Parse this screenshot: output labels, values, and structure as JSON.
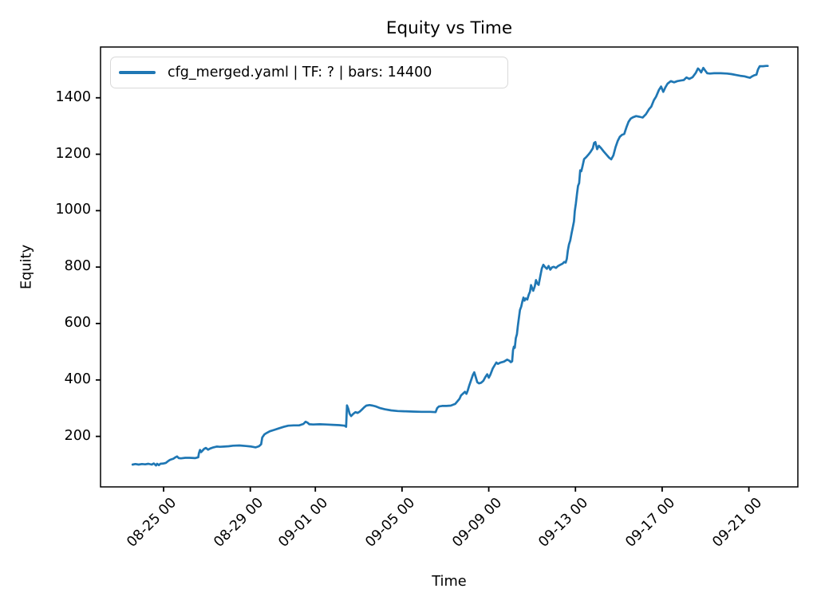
{
  "chart_data": {
    "type": "line",
    "title": "Equity vs Time",
    "xlabel": "Time",
    "ylabel": "Equity",
    "grid": false,
    "legend": {
      "position": "upper left",
      "entries": [
        "cfg_merged.yaml | TF: ? | bars: 14400"
      ]
    },
    "line_color": "#1f77b4",
    "x_unit": "days since 08-25 00:00",
    "xlim": [
      -2.91,
      29.26
    ],
    "ylim": [
      21,
      1580
    ],
    "x_ticks": [
      {
        "t": 0,
        "label": "08-25 00"
      },
      {
        "t": 4,
        "label": "08-29 00"
      },
      {
        "t": 7,
        "label": "09-01 00"
      },
      {
        "t": 11,
        "label": "09-05 00"
      },
      {
        "t": 15,
        "label": "09-09 00"
      },
      {
        "t": 19,
        "label": "09-13 00"
      },
      {
        "t": 23,
        "label": "09-17 00"
      },
      {
        "t": 27,
        "label": "09-21 00"
      }
    ],
    "y_ticks": [
      200,
      400,
      600,
      800,
      1000,
      1200,
      1400
    ],
    "series": [
      {
        "name": "cfg_merged.yaml | TF: ? | bars: 14400",
        "points": [
          [
            -1.43,
            100
          ],
          [
            -1.3,
            102
          ],
          [
            -1.15,
            100
          ],
          [
            -1.0,
            102
          ],
          [
            -0.85,
            101
          ],
          [
            -0.7,
            103
          ],
          [
            -0.55,
            100
          ],
          [
            -0.45,
            104
          ],
          [
            -0.35,
            97
          ],
          [
            -0.3,
            103
          ],
          [
            -0.22,
            98
          ],
          [
            -0.15,
            103
          ],
          [
            0.0,
            104
          ],
          [
            0.1,
            106
          ],
          [
            0.2,
            112
          ],
          [
            0.3,
            117
          ],
          [
            0.45,
            121
          ],
          [
            0.55,
            126
          ],
          [
            0.62,
            129
          ],
          [
            0.7,
            123
          ],
          [
            0.8,
            122
          ],
          [
            1.0,
            124
          ],
          [
            1.2,
            124
          ],
          [
            1.45,
            123
          ],
          [
            1.6,
            126
          ],
          [
            1.63,
            140
          ],
          [
            1.68,
            152
          ],
          [
            1.73,
            144
          ],
          [
            1.8,
            150
          ],
          [
            1.87,
            156
          ],
          [
            1.95,
            159
          ],
          [
            2.05,
            153
          ],
          [
            2.15,
            157
          ],
          [
            2.3,
            161
          ],
          [
            2.45,
            164
          ],
          [
            2.6,
            163
          ],
          [
            2.8,
            164
          ],
          [
            3.0,
            165
          ],
          [
            3.2,
            167
          ],
          [
            3.5,
            168
          ],
          [
            3.8,
            166
          ],
          [
            4.05,
            164
          ],
          [
            4.25,
            161
          ],
          [
            4.4,
            165
          ],
          [
            4.5,
            172
          ],
          [
            4.55,
            196
          ],
          [
            4.65,
            207
          ],
          [
            4.75,
            212
          ],
          [
            4.9,
            218
          ],
          [
            5.1,
            223
          ],
          [
            5.3,
            228
          ],
          [
            5.55,
            234
          ],
          [
            5.75,
            238
          ],
          [
            6.0,
            239
          ],
          [
            6.25,
            239
          ],
          [
            6.45,
            244
          ],
          [
            6.55,
            252
          ],
          [
            6.65,
            248
          ],
          [
            6.72,
            243
          ],
          [
            6.9,
            242
          ],
          [
            7.2,
            243
          ],
          [
            7.5,
            242
          ],
          [
            7.8,
            241
          ],
          [
            8.1,
            240
          ],
          [
            8.35,
            238
          ],
          [
            8.42,
            234
          ],
          [
            8.46,
            310
          ],
          [
            8.52,
            298
          ],
          [
            8.58,
            280
          ],
          [
            8.65,
            272
          ],
          [
            8.75,
            280
          ],
          [
            8.85,
            286
          ],
          [
            8.95,
            283
          ],
          [
            9.05,
            288
          ],
          [
            9.15,
            295
          ],
          [
            9.25,
            303
          ],
          [
            9.35,
            309
          ],
          [
            9.5,
            311
          ],
          [
            9.65,
            309
          ],
          [
            9.8,
            306
          ],
          [
            10.0,
            300
          ],
          [
            10.2,
            296
          ],
          [
            10.5,
            292
          ],
          [
            10.8,
            290
          ],
          [
            11.1,
            289
          ],
          [
            11.5,
            288
          ],
          [
            11.9,
            287
          ],
          [
            12.3,
            287
          ],
          [
            12.55,
            286
          ],
          [
            12.62,
            300
          ],
          [
            12.7,
            306
          ],
          [
            12.85,
            308
          ],
          [
            13.05,
            308
          ],
          [
            13.25,
            309
          ],
          [
            13.45,
            315
          ],
          [
            13.55,
            324
          ],
          [
            13.65,
            333
          ],
          [
            13.72,
            345
          ],
          [
            13.82,
            352
          ],
          [
            13.9,
            358
          ],
          [
            13.97,
            351
          ],
          [
            14.03,
            362
          ],
          [
            14.1,
            380
          ],
          [
            14.18,
            398
          ],
          [
            14.27,
            418
          ],
          [
            14.33,
            427
          ],
          [
            14.4,
            410
          ],
          [
            14.47,
            392
          ],
          [
            14.55,
            388
          ],
          [
            14.65,
            390
          ],
          [
            14.75,
            397
          ],
          [
            14.85,
            411
          ],
          [
            14.93,
            420
          ],
          [
            15.0,
            408
          ],
          [
            15.08,
            420
          ],
          [
            15.18,
            440
          ],
          [
            15.28,
            453
          ],
          [
            15.35,
            462
          ],
          [
            15.42,
            457
          ],
          [
            15.55,
            462
          ],
          [
            15.7,
            465
          ],
          [
            15.85,
            472
          ],
          [
            15.95,
            468
          ],
          [
            16.02,
            463
          ],
          [
            16.08,
            466
          ],
          [
            16.12,
            505
          ],
          [
            16.16,
            518
          ],
          [
            16.2,
            514
          ],
          [
            16.25,
            548
          ],
          [
            16.3,
            562
          ],
          [
            16.34,
            590
          ],
          [
            16.38,
            614
          ],
          [
            16.44,
            648
          ],
          [
            16.5,
            660
          ],
          [
            16.55,
            678
          ],
          [
            16.6,
            692
          ],
          [
            16.65,
            681
          ],
          [
            16.7,
            689
          ],
          [
            16.78,
            685
          ],
          [
            16.85,
            703
          ],
          [
            16.9,
            712
          ],
          [
            16.95,
            736
          ],
          [
            17.0,
            726
          ],
          [
            17.05,
            716
          ],
          [
            17.12,
            731
          ],
          [
            17.18,
            754
          ],
          [
            17.24,
            742
          ],
          [
            17.3,
            737
          ],
          [
            17.38,
            768
          ],
          [
            17.45,
            795
          ],
          [
            17.52,
            808
          ],
          [
            17.6,
            800
          ],
          [
            17.68,
            794
          ],
          [
            17.76,
            804
          ],
          [
            17.84,
            791
          ],
          [
            17.92,
            799
          ],
          [
            18.0,
            801
          ],
          [
            18.1,
            797
          ],
          [
            18.2,
            804
          ],
          [
            18.3,
            808
          ],
          [
            18.4,
            812
          ],
          [
            18.48,
            818
          ],
          [
            18.55,
            816
          ],
          [
            18.6,
            829
          ],
          [
            18.65,
            858
          ],
          [
            18.7,
            880
          ],
          [
            18.76,
            894
          ],
          [
            18.82,
            920
          ],
          [
            18.88,
            942
          ],
          [
            18.93,
            962
          ],
          [
            18.97,
            998
          ],
          [
            19.02,
            1026
          ],
          [
            19.07,
            1060
          ],
          [
            19.12,
            1088
          ],
          [
            19.17,
            1098
          ],
          [
            19.22,
            1143
          ],
          [
            19.27,
            1140
          ],
          [
            19.32,
            1155
          ],
          [
            19.4,
            1183
          ],
          [
            19.5,
            1190
          ],
          [
            19.6,
            1199
          ],
          [
            19.7,
            1209
          ],
          [
            19.8,
            1221
          ],
          [
            19.86,
            1240
          ],
          [
            19.92,
            1243
          ],
          [
            20.0,
            1218
          ],
          [
            20.08,
            1230
          ],
          [
            20.18,
            1222
          ],
          [
            20.3,
            1210
          ],
          [
            20.45,
            1197
          ],
          [
            20.55,
            1188
          ],
          [
            20.65,
            1182
          ],
          [
            20.75,
            1196
          ],
          [
            20.85,
            1225
          ],
          [
            20.95,
            1247
          ],
          [
            21.05,
            1262
          ],
          [
            21.15,
            1269
          ],
          [
            21.25,
            1272
          ],
          [
            21.35,
            1295
          ],
          [
            21.45,
            1315
          ],
          [
            21.55,
            1326
          ],
          [
            21.65,
            1331
          ],
          [
            21.8,
            1335
          ],
          [
            21.95,
            1333
          ],
          [
            22.1,
            1330
          ],
          [
            22.25,
            1342
          ],
          [
            22.4,
            1360
          ],
          [
            22.5,
            1369
          ],
          [
            22.62,
            1392
          ],
          [
            22.72,
            1404
          ],
          [
            22.85,
            1428
          ],
          [
            22.95,
            1440
          ],
          [
            23.05,
            1421
          ],
          [
            23.15,
            1437
          ],
          [
            23.25,
            1450
          ],
          [
            23.4,
            1459
          ],
          [
            23.55,
            1455
          ],
          [
            23.7,
            1459
          ],
          [
            23.85,
            1461
          ],
          [
            24.0,
            1463
          ],
          [
            24.12,
            1472
          ],
          [
            24.25,
            1467
          ],
          [
            24.4,
            1473
          ],
          [
            24.55,
            1488
          ],
          [
            24.65,
            1504
          ],
          [
            24.72,
            1499
          ],
          [
            24.8,
            1490
          ],
          [
            24.9,
            1506
          ],
          [
            25.0,
            1495
          ],
          [
            25.08,
            1487
          ],
          [
            25.2,
            1486
          ],
          [
            25.4,
            1487
          ],
          [
            25.7,
            1487
          ],
          [
            26.0,
            1486
          ],
          [
            26.2,
            1484
          ],
          [
            26.4,
            1481
          ],
          [
            26.6,
            1478
          ],
          [
            26.8,
            1476
          ],
          [
            26.95,
            1473
          ],
          [
            27.05,
            1471
          ],
          [
            27.15,
            1476
          ],
          [
            27.25,
            1480
          ],
          [
            27.35,
            1482
          ],
          [
            27.42,
            1500
          ],
          [
            27.5,
            1512
          ],
          [
            27.65,
            1512
          ],
          [
            27.8,
            1513
          ],
          [
            27.87,
            1513
          ]
        ]
      }
    ]
  }
}
